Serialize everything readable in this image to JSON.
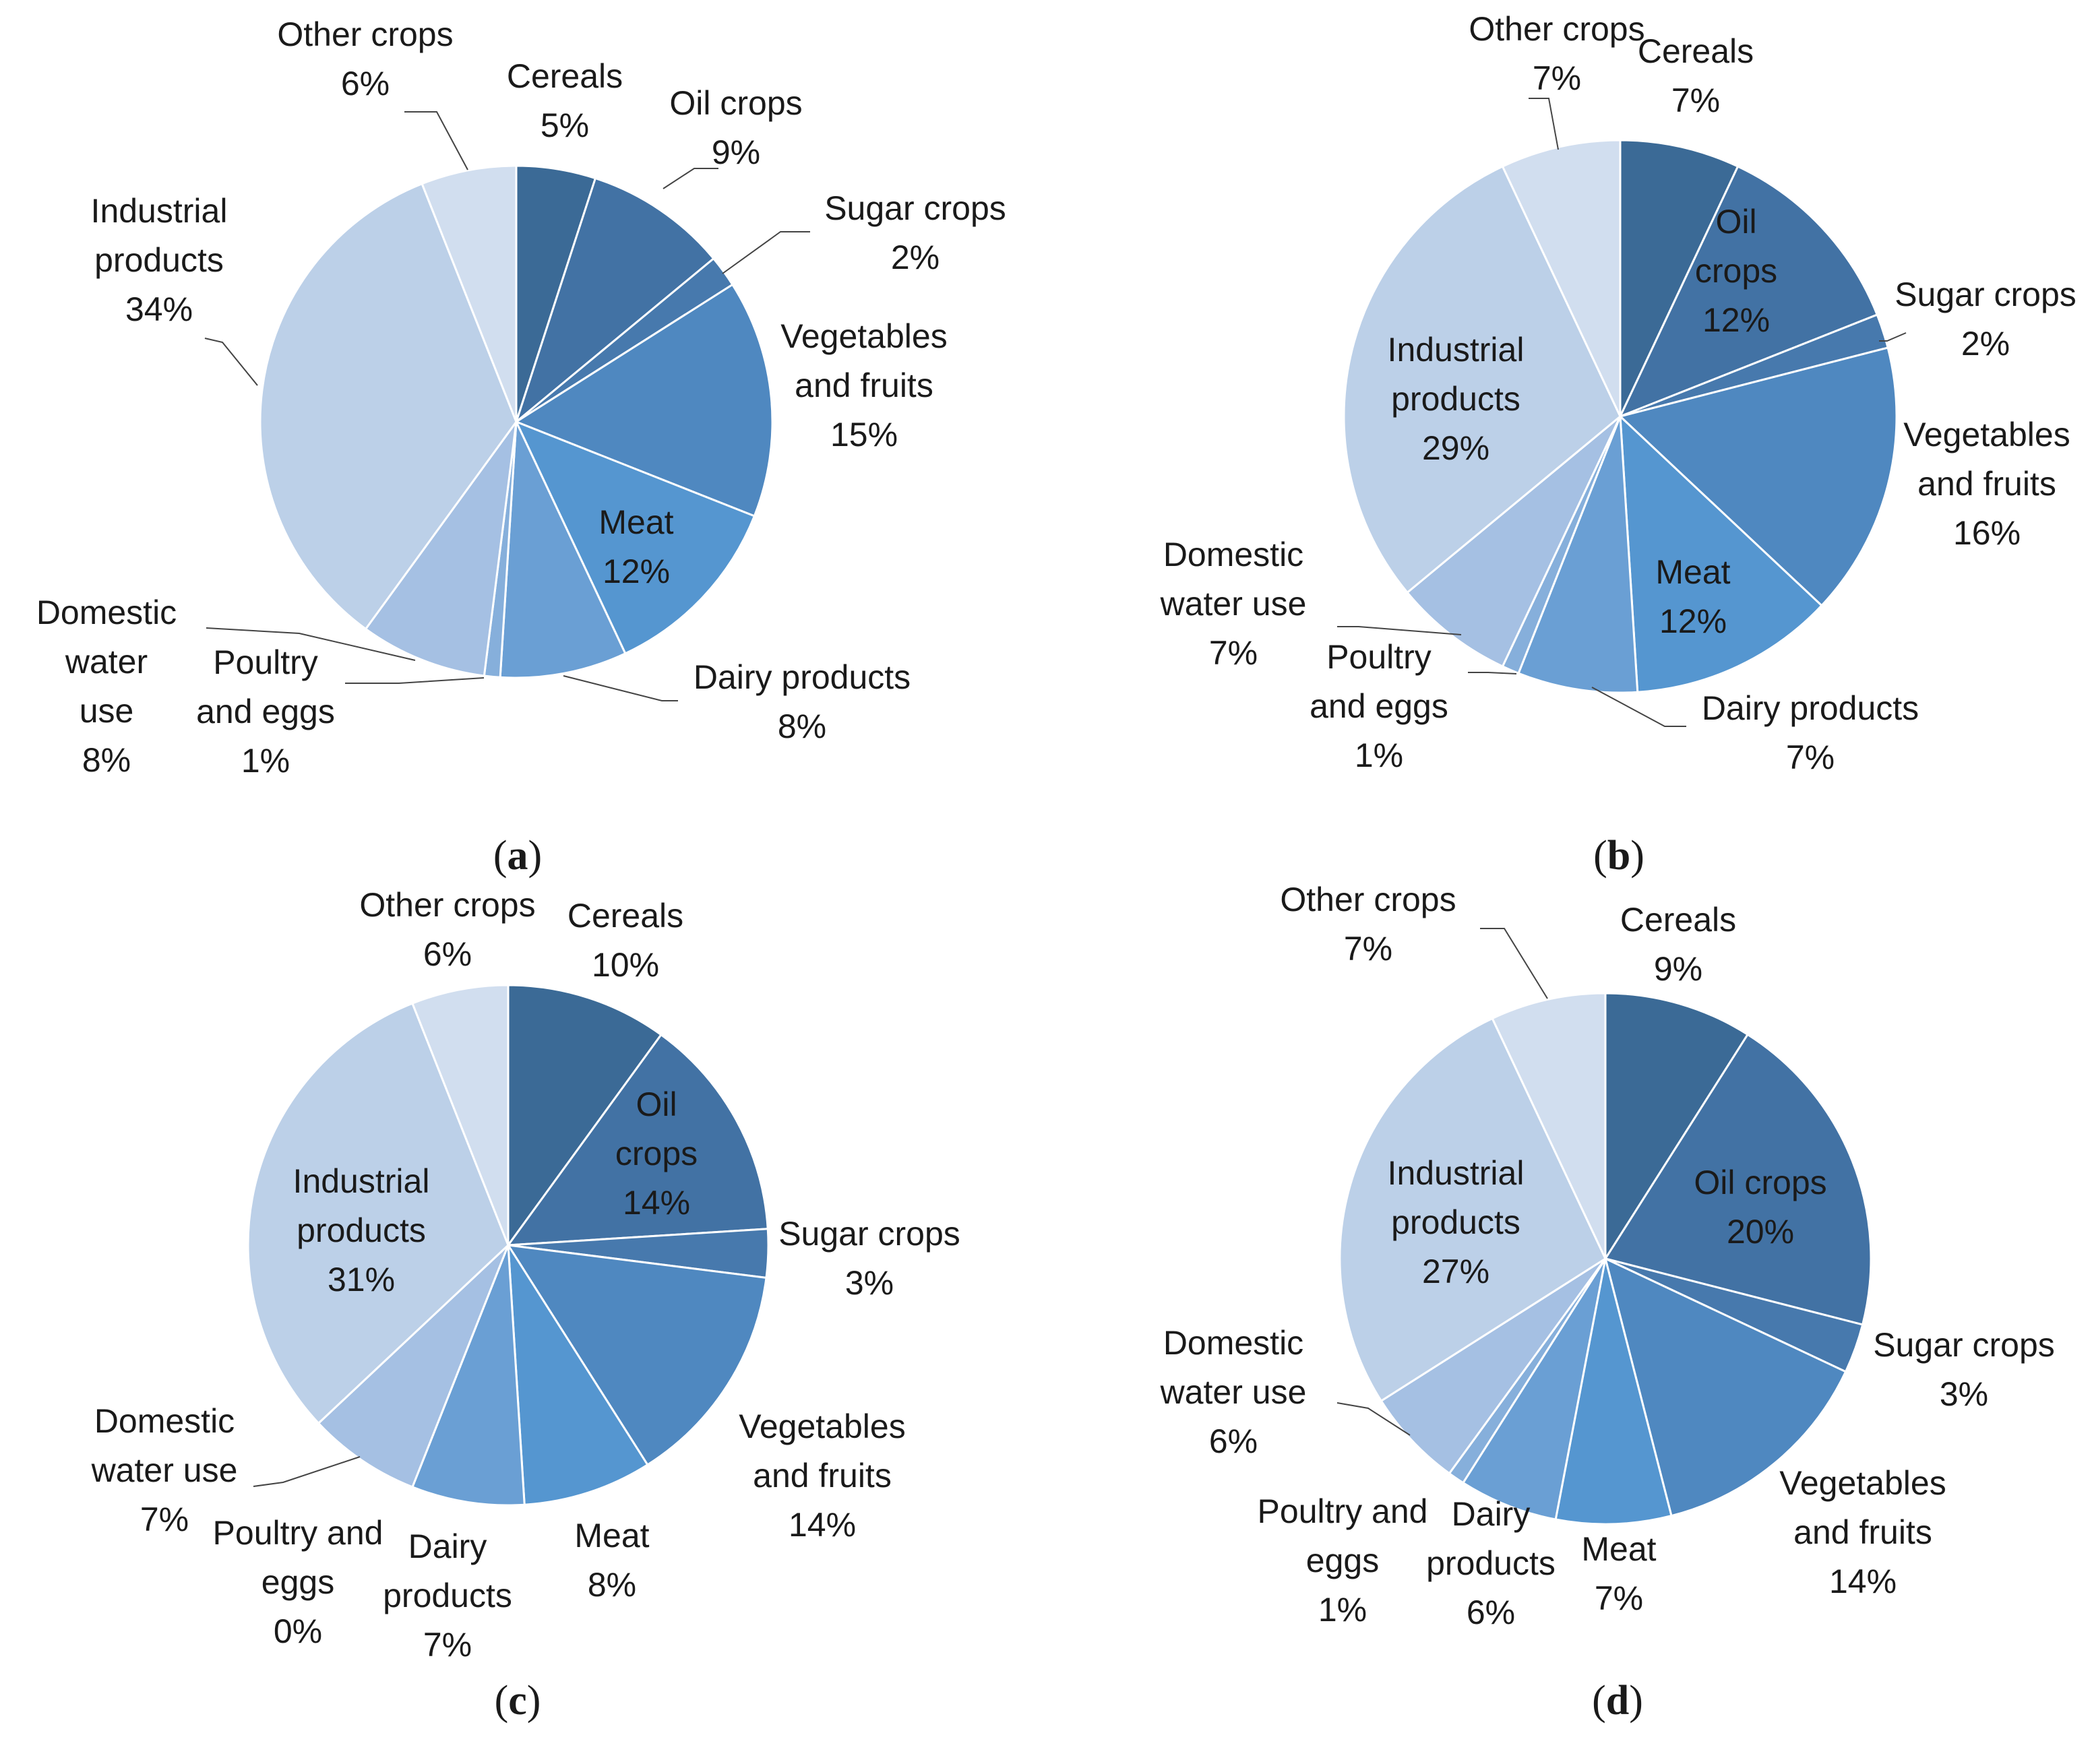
{
  "chart_data": [
    {
      "type": "pie",
      "panel": "(a)",
      "panel_letter": "a",
      "slices": [
        {
          "name": "Cereals",
          "value": 5,
          "label": [
            "Cereals",
            "5%"
          ],
          "color": "#3b6a96"
        },
        {
          "name": "Oil crops",
          "value": 9,
          "label": [
            "Oil crops",
            "9%"
          ],
          "color": "#4272a4"
        },
        {
          "name": "Sugar crops",
          "value": 2,
          "label": [
            "Sugar crops",
            "2%"
          ],
          "color": "#4779ad"
        },
        {
          "name": "Vegetables and fruits",
          "value": 15,
          "label": [
            "Vegetables",
            "and fruits",
            "15%"
          ],
          "color": "#4f88c0"
        },
        {
          "name": "Meat",
          "value": 12,
          "label": [
            "Meat",
            "12%"
          ],
          "color": "#5596d0"
        },
        {
          "name": "Dairy products",
          "value": 8,
          "label": [
            "Dairy products",
            "8%"
          ],
          "color": "#6a9fd4"
        },
        {
          "name": "Poultry and eggs",
          "value": 1,
          "label": [
            "Poultry",
            "and  eggs",
            "1%"
          ],
          "color": "#86afdb"
        },
        {
          "name": "Domestic water use",
          "value": 8,
          "label": [
            "Domestic",
            "water",
            "use",
            "8%"
          ],
          "color": "#a5c0e3"
        },
        {
          "name": "Industrial products",
          "value": 34,
          "label": [
            "Industrial",
            "products",
            "34%"
          ],
          "color": "#bcd0e8"
        },
        {
          "name": "Other crops",
          "value": 6,
          "label": [
            "Other crops",
            "6%"
          ],
          "color": "#d1deef"
        }
      ]
    },
    {
      "type": "pie",
      "panel": "(b)",
      "panel_letter": "b",
      "slices": [
        {
          "name": "Cereals",
          "value": 7,
          "label": [
            "Cereals",
            "7%"
          ],
          "color": "#3b6a96"
        },
        {
          "name": "Oil crops",
          "value": 12,
          "label": [
            "Oil",
            "crops",
            "12%"
          ],
          "color": "#4272a4"
        },
        {
          "name": "Sugar crops",
          "value": 2,
          "label": [
            "Sugar crops",
            "2%"
          ],
          "color": "#4779ad"
        },
        {
          "name": "Vegetables and fruits",
          "value": 16,
          "label": [
            "Vegetables",
            "and fruits",
            "16%"
          ],
          "color": "#4f88c0"
        },
        {
          "name": "Meat",
          "value": 12,
          "label": [
            "Meat",
            "12%"
          ],
          "color": "#5596d0"
        },
        {
          "name": "Dairy products",
          "value": 7,
          "label": [
            "Dairy products",
            "7%"
          ],
          "color": "#6a9fd4"
        },
        {
          "name": "Poultry and eggs",
          "value": 1,
          "label": [
            "Poultry",
            "and  eggs",
            "1%"
          ],
          "color": "#86afdb"
        },
        {
          "name": "Domestic water use",
          "value": 7,
          "label": [
            "Domestic",
            "water use",
            "7%"
          ],
          "color": "#a5c0e3"
        },
        {
          "name": "Industrial products",
          "value": 29,
          "label": [
            "Industrial",
            "products",
            "29%"
          ],
          "color": "#bcd0e8"
        },
        {
          "name": "Other crops",
          "value": 7,
          "label": [
            "Other crops",
            "7%"
          ],
          "color": "#d1deef"
        }
      ]
    },
    {
      "type": "pie",
      "panel": "(c)",
      "panel_letter": "c",
      "slices": [
        {
          "name": "Cereals",
          "value": 10,
          "label": [
            "Cereals",
            "10%"
          ],
          "color": "#3b6a96"
        },
        {
          "name": "Oil crops",
          "value": 14,
          "label": [
            "Oil",
            "crops",
            "14%"
          ],
          "color": "#4272a4"
        },
        {
          "name": "Sugar crops",
          "value": 3,
          "label": [
            "Sugar crops",
            "3%"
          ],
          "color": "#4779ad"
        },
        {
          "name": "Vegetables and fruits",
          "value": 14,
          "label": [
            "Vegetables",
            "and fruits",
            "14%"
          ],
          "color": "#4f88c0"
        },
        {
          "name": "Meat",
          "value": 8,
          "label": [
            "Meat",
            "8%"
          ],
          "color": "#5596d0"
        },
        {
          "name": "Dairy products",
          "value": 7,
          "label": [
            "Dairy",
            "products",
            "7%"
          ],
          "color": "#6a9fd4"
        },
        {
          "name": "Poultry and eggs",
          "value": 0,
          "label": [
            "Poultry and",
            "eggs",
            "0%"
          ],
          "color": "#86afdb"
        },
        {
          "name": "Domestic water use",
          "value": 7,
          "label": [
            "Domestic",
            "water use",
            "7%"
          ],
          "color": "#a5c0e3"
        },
        {
          "name": "Industrial products",
          "value": 31,
          "label": [
            "Industrial",
            "products",
            "31%"
          ],
          "color": "#bcd0e8"
        },
        {
          "name": "Other crops",
          "value": 6,
          "label": [
            "Other crops",
            "6%"
          ],
          "color": "#d1deef"
        }
      ]
    },
    {
      "type": "pie",
      "panel": "(d)",
      "panel_letter": "d",
      "slices": [
        {
          "name": "Cereals",
          "value": 9,
          "label": [
            "Cereals",
            "9%"
          ],
          "color": "#3b6a96"
        },
        {
          "name": "Oil crops",
          "value": 20,
          "label": [
            "Oil crops",
            "20%"
          ],
          "color": "#4272a4"
        },
        {
          "name": "Sugar crops",
          "value": 3,
          "label": [
            "Sugar crops",
            "3%"
          ],
          "color": "#4779ad"
        },
        {
          "name": "Vegetables and fruits",
          "value": 14,
          "label": [
            "Vegetables",
            "and fruits",
            "14%"
          ],
          "color": "#4f88c0"
        },
        {
          "name": "Meat",
          "value": 7,
          "label": [
            "Meat",
            "7%"
          ],
          "color": "#5596d0"
        },
        {
          "name": "Dairy products",
          "value": 6,
          "label": [
            "Dairy",
            "products",
            "6%"
          ],
          "color": "#6a9fd4"
        },
        {
          "name": "Poultry and eggs",
          "value": 1,
          "label": [
            "Poultry and",
            "eggs",
            "1%"
          ],
          "color": "#86afdb"
        },
        {
          "name": "Domestic water use",
          "value": 6,
          "label": [
            "Domestic",
            "water use",
            "6%"
          ],
          "color": "#a5c0e3"
        },
        {
          "name": "Industrial products",
          "value": 27,
          "label": [
            "Industrial",
            "products",
            "27%"
          ],
          "color": "#bcd0e8"
        },
        {
          "name": "Other crops",
          "value": 7,
          "label": [
            "Other crops",
            "7%"
          ],
          "color": "#d1deef"
        }
      ]
    }
  ]
}
